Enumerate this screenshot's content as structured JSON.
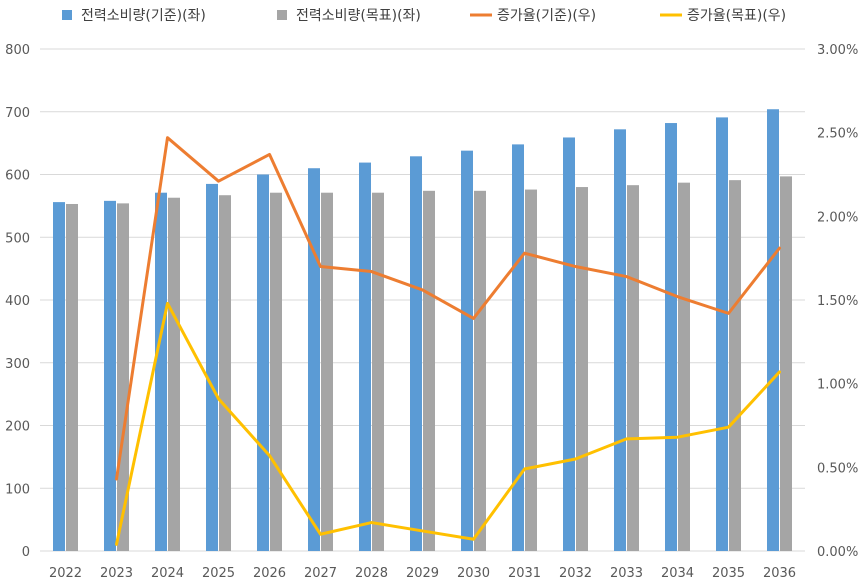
{
  "chart_data": {
    "type": "bar",
    "categories": [
      "2022",
      "2023",
      "2024",
      "2025",
      "2026",
      "2027",
      "2028",
      "2029",
      "2030",
      "2031",
      "2032",
      "2033",
      "2034",
      "2035",
      "2036"
    ],
    "series": [
      {
        "name": "전력소비량(기준)(좌)",
        "kind": "bar",
        "axis": "left",
        "color": "#5b9bd5",
        "values": [
          556,
          558,
          571,
          585,
          600,
          610,
          619,
          629,
          638,
          648,
          659,
          672,
          682,
          691,
          704
        ]
      },
      {
        "name": "전력소비량(목표)(좌)",
        "kind": "bar",
        "axis": "left",
        "color": "#a5a5a5",
        "values": [
          553,
          554,
          563,
          567,
          571,
          571,
          571,
          574,
          574,
          576,
          580,
          583,
          587,
          591,
          597
        ]
      },
      {
        "name": "증가율(기준)(우)",
        "kind": "line",
        "axis": "right",
        "color": "#ed7d31",
        "values": [
          null,
          0.43,
          2.47,
          2.21,
          2.37,
          1.7,
          1.67,
          1.56,
          1.39,
          1.78,
          1.7,
          1.64,
          1.52,
          1.42,
          1.81
        ]
      },
      {
        "name": "증가율(목표)(우)",
        "kind": "line",
        "axis": "right",
        "color": "#ffc000",
        "values": [
          null,
          0.04,
          1.48,
          0.91,
          0.57,
          0.1,
          0.17,
          0.12,
          0.07,
          0.49,
          0.55,
          0.67,
          0.68,
          0.74,
          1.07
        ]
      }
    ],
    "y_left": {
      "min": 0,
      "max": 800,
      "ticks": [
        "0",
        "100",
        "200",
        "300",
        "400",
        "500",
        "600",
        "700",
        "800"
      ]
    },
    "y_right": {
      "min": 0,
      "max": 3,
      "ticks": [
        "0.00%",
        "0.50%",
        "1.00%",
        "1.50%",
        "2.00%",
        "2.50%",
        "3.00%"
      ]
    },
    "grid": true,
    "legend": "top"
  }
}
